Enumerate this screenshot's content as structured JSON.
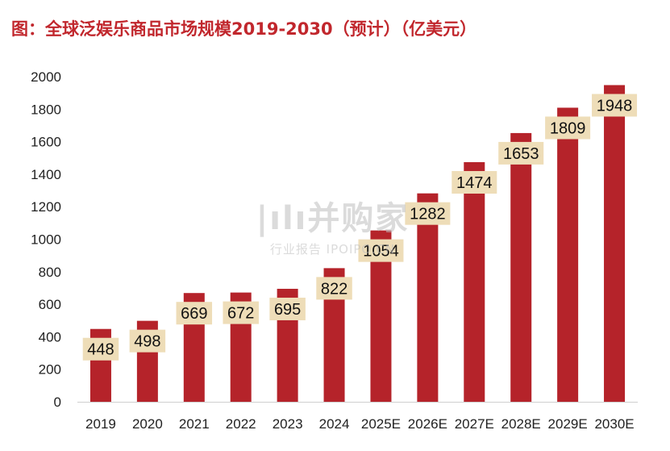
{
  "title": "图：全球泛娱乐商品市场规模2019-2030（预计）（亿美元）",
  "watermark": {
    "main": "|ılı并购家",
    "sub": "行业报告 IPOIPO.CN"
  },
  "colors": {
    "bar": "#B5232A",
    "label_bg": "#EEDDB8",
    "title": "#C1272D"
  },
  "chart_data": {
    "type": "bar",
    "title": "图：全球泛娱乐商品市场规模2019-2030（预计）（亿美元）",
    "categories": [
      "2019",
      "2020",
      "2021",
      "2022",
      "2023",
      "2024",
      "2025E",
      "2026E",
      "2027E",
      "2028E",
      "2029E",
      "2030E"
    ],
    "values": [
      448,
      498,
      669,
      672,
      695,
      822,
      1054,
      1282,
      1474,
      1653,
      1809,
      1948
    ],
    "ylim": [
      0,
      2000
    ],
    "yticks": [
      "0",
      "200",
      "400",
      "600",
      "800",
      "1000",
      "1200",
      "1400",
      "1600",
      "1800",
      "2000"
    ],
    "grid": false,
    "legend": "none",
    "data_labels": true
  }
}
